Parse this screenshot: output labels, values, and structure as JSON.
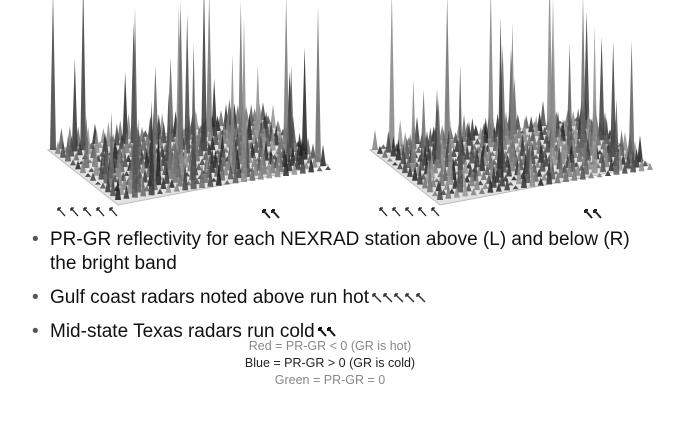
{
  "bullets": [
    "PR-GR reflectivity for each NEXRAD station above (L) and below (R) the bright band",
    "Gulf coast radars noted above run hot",
    "Mid-state Texas radars run cold"
  ],
  "legend": [
    "Red = PR-GR < 0 (GR is hot)",
    "Blue = PR-GR > 0 (GR is cold)",
    "Green = PR-GR = 0"
  ]
}
